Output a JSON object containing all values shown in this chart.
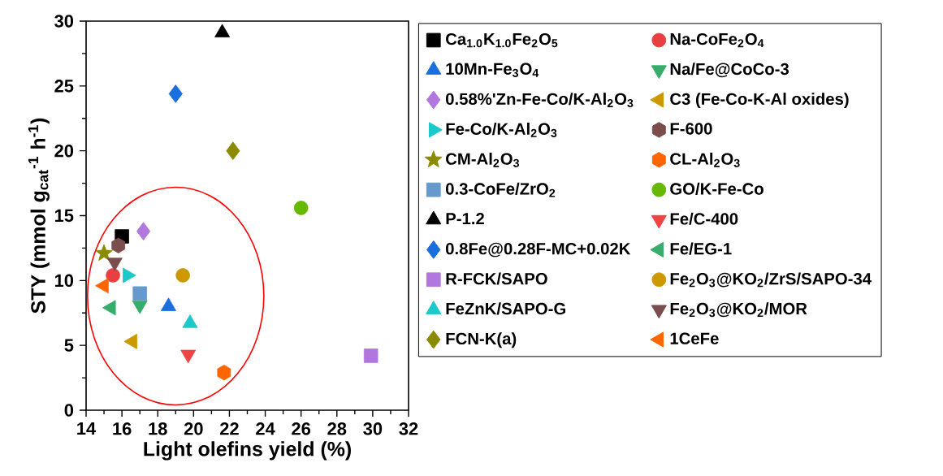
{
  "chart_data": {
    "type": "scatter",
    "xlabel": "Light olefins yield (%)",
    "ylabel": "STY (mmol g$_{cat}$$^{-1}$ h$^{-1}$)",
    "xlim": [
      14,
      32
    ],
    "xticks": [
      14,
      16,
      18,
      20,
      22,
      24,
      26,
      28,
      30,
      32
    ],
    "ylim": [
      0,
      30
    ],
    "yticks": [
      0,
      5,
      10,
      15,
      20,
      25,
      30
    ],
    "legend": "right",
    "grid": false,
    "series": [
      {
        "name": "Ca$_{1.0}$K$_{1.0}$Fe$_{2}$O$_{5}$",
        "color": "#000000",
        "marker": "square",
        "x": [
          16.0
        ],
        "values": [
          13.4
        ]
      },
      {
        "name": "Na-CoFe$_{2}$O$_{4}$",
        "color": "#e84040",
        "marker": "circle",
        "x": [
          15.5
        ],
        "values": [
          10.4
        ]
      },
      {
        "name": "10Mn-Fe$_{3}$O$_{4}$",
        "color": "#1a6fdf",
        "marker": "triangle",
        "x": [
          18.6
        ],
        "values": [
          8.0
        ]
      },
      {
        "name": "Na/Fe@CoCo-3",
        "color": "#37ad6b",
        "marker": "triangle-down",
        "x": [
          17.0
        ],
        "values": [
          8.1
        ]
      },
      {
        "name": "0.58%'Zn-Fe-Co/K-Al$_{2}$O$_{3}$",
        "color": "#b177de",
        "marker": "diamond",
        "x": [
          17.2
        ],
        "values": [
          13.8
        ]
      },
      {
        "name": "C3 (Fe-Co-K-Al oxides)",
        "color": "#cc9900",
        "marker": "triangle-left",
        "x": [
          16.6
        ],
        "values": [
          5.3
        ]
      },
      {
        "name": "Fe-Co/K-Al$_{2}$O$_{3}$",
        "color": "#1ac9c9",
        "marker": "triangle-right",
        "x": [
          16.3
        ],
        "values": [
          10.4
        ]
      },
      {
        "name": "F-600",
        "color": "#7b4d4d",
        "x": [
          15.8
        ],
        "values": [
          12.7
        ]
      },
      {
        "name": "CM-Al$_{2}$O$_{3}$",
        "color": "#8b8b00",
        "marker": "star",
        "x": [
          15.0
        ],
        "values": [
          12.1
        ]
      },
      {
        "name": "CL-Al$_{2}$O$_{3}$",
        "color": "#ff6600",
        "x": [
          21.7
        ],
        "values": [
          2.9
        ]
      },
      {
        "name": "0.3-CoFe/ZrO$_{2}$",
        "color": "#6699cc",
        "marker": "square",
        "x": [
          17.0
        ],
        "values": [
          9.0
        ]
      },
      {
        "name": "GO/K-Fe-Co",
        "color": "#66b800",
        "marker": "circle",
        "x": [
          26.0
        ],
        "values": [
          15.6
        ]
      },
      {
        "name": "P-1.2",
        "color": "#000000",
        "marker": "triangle",
        "x": [
          21.6
        ],
        "values": [
          29.1
        ]
      },
      {
        "name": "Fe/C-400",
        "color": "#ef4444",
        "marker": "triangle-down",
        "x": [
          19.7
        ],
        "values": [
          4.3
        ]
      },
      {
        "name": "0.8Fe@0.28F-MC+0.02K",
        "color": "#1a6fdf",
        "marker": "diamond",
        "x": [
          19.0
        ],
        "values": [
          24.4
        ]
      },
      {
        "name": "Fe/EG-1",
        "color": "#37ad6b",
        "marker": "triangle-left",
        "x": [
          15.4
        ],
        "values": [
          7.9
        ]
      },
      {
        "name": "R-FCK/SAPO",
        "color": "#b177de",
        "marker": "square",
        "x": [
          29.9
        ],
        "values": [
          4.2
        ]
      },
      {
        "name": "Fe$_{2}$O$_{3}$@KO$_{2}$/ZrS/SAPO-34",
        "color": "#cc9900",
        "marker": "circle",
        "x": [
          19.4
        ],
        "values": [
          10.4
        ]
      },
      {
        "name": "FeZnK/SAPO-G",
        "color": "#1ac9c9",
        "marker": "triangle",
        "x": [
          19.8
        ],
        "values": [
          6.7
        ]
      },
      {
        "name": "Fe$_{2}$O$_{3}$@KO$_{2}$/MOR",
        "color": "#7b4d4d",
        "marker": "triangle-down",
        "x": [
          15.6
        ],
        "values": [
          11.4
        ]
      },
      {
        "name": "FCN-K(a)",
        "color": "#8b8b00",
        "marker": "diamond",
        "x": [
          22.2
        ],
        "values": [
          20.0
        ]
      },
      {
        "name": "1CeFe",
        "color": "#ff6600",
        "marker": "triangle-left",
        "x": [
          15.0
        ],
        "values": [
          9.6
        ]
      }
    ]
  }
}
